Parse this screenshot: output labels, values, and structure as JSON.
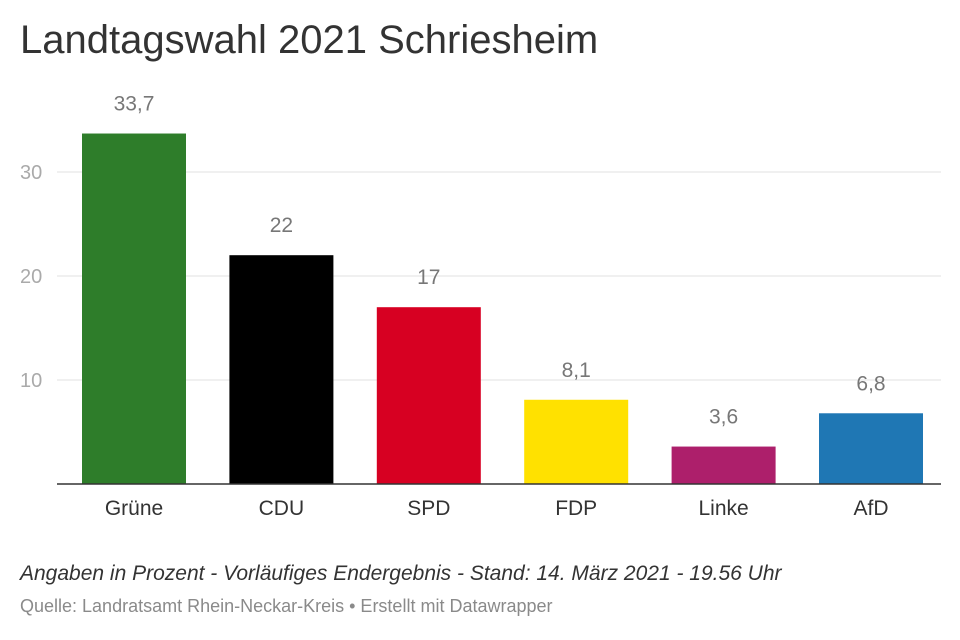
{
  "title": "Landtagswahl 2021 Schriesheim",
  "footnote": "Angaben in Prozent - Vorläufiges Endergebnis - Stand: 14. März 2021 - 19.56 Uhr",
  "source": "Quelle: Landratsamt Rhein-Neckar-Kreis • Erstellt mit Datawrapper",
  "chart_data": {
    "type": "bar",
    "categories": [
      "Grüne",
      "CDU",
      "SPD",
      "FDP",
      "Linke",
      "AfD"
    ],
    "values": [
      33.7,
      22,
      17,
      8.1,
      3.6,
      6.8
    ],
    "value_labels": [
      "33,7",
      "22",
      "17",
      "8,1",
      "3,6",
      "6,8"
    ],
    "colors": [
      "#2e7d2a",
      "#000000",
      "#d70022",
      "#ffe100",
      "#ad1f6b",
      "#1f77b4"
    ],
    "ylim": [
      0,
      35
    ],
    "yticks": [
      10,
      20,
      30
    ],
    "ytick_labels": [
      "10",
      "20",
      "30"
    ],
    "grid": true,
    "xlabel": "",
    "ylabel": ""
  }
}
